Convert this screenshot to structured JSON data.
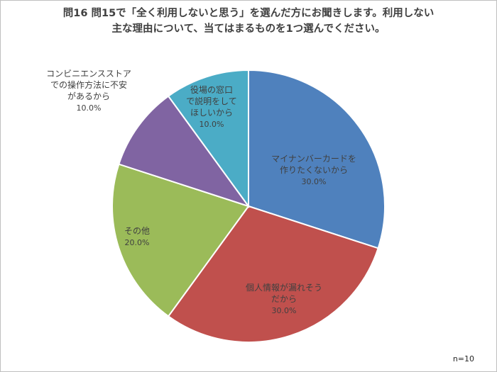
{
  "title": {
    "line1": "問16  問15で「全く利用しないと思う」を選んだ方にお聞きします。利用しない",
    "line2": "主な理由について、当てはまるものを1つ選んでください。"
  },
  "note": "n=10",
  "chart_data": {
    "type": "pie",
    "title": "問16  問15で「全く利用しないと思う」を選んだ方にお聞きします。利用しない主な理由について、当てはまるものを1つ選んでください。",
    "start_angle_deg": 0,
    "direction": "clockwise",
    "slices": [
      {
        "label": "マイナンバーカードを作りたくないから",
        "label_lines": [
          "マイナンバーカードを",
          "作りたくないから"
        ],
        "value": 30.0,
        "value_label": "30.0%",
        "color": "#4f81bd"
      },
      {
        "label": "個人情報が漏れそうだから",
        "label_lines": [
          "個人情報が漏れそう",
          "だから"
        ],
        "value": 30.0,
        "value_label": "30.0%",
        "color": "#c0504d"
      },
      {
        "label": "その他",
        "label_lines": [
          "その他"
        ],
        "value": 20.0,
        "value_label": "20.0%",
        "color": "#9bbb59"
      },
      {
        "label": "コンビニエンスストアでの操作方法に不安があるから",
        "label_lines": [
          "コンビニエンスストア",
          "での操作方法に不安",
          "があるから"
        ],
        "value": 10.0,
        "value_label": "10.0%",
        "color": "#8064a2"
      },
      {
        "label": "役場の窓口で説明をしてほしいから",
        "label_lines": [
          "役場の窓口",
          "で説明をして",
          "ほしいから"
        ],
        "value": 10.0,
        "value_label": "10.0%",
        "color": "#4bacc6"
      }
    ]
  }
}
